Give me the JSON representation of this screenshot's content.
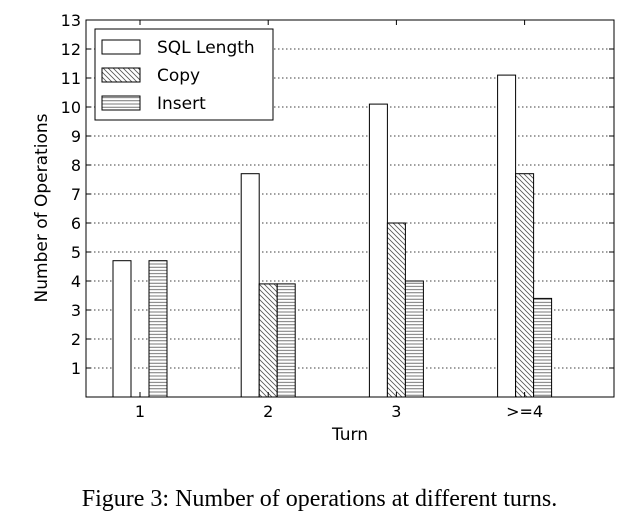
{
  "chart_data": {
    "type": "bar",
    "categories": [
      "1",
      "2",
      "3",
      ">=4"
    ],
    "series": [
      {
        "name": "SQL Length",
        "values": [
          4.7,
          7.7,
          10.1,
          11.1
        ],
        "pattern": "none"
      },
      {
        "name": "Copy",
        "values": [
          0,
          3.9,
          6.0,
          7.7
        ],
        "pattern": "diagonal"
      },
      {
        "name": "Insert",
        "values": [
          4.7,
          3.9,
          4.0,
          3.4
        ],
        "pattern": "horizontal"
      }
    ],
    "xlabel": "Turn",
    "ylabel": "Number of Operations",
    "ylim": [
      0,
      13
    ],
    "yticks": [
      1,
      2,
      3,
      4,
      5,
      6,
      7,
      8,
      9,
      10,
      11,
      12,
      13
    ],
    "grid": "horizontal dotted",
    "legend_position": "top-left",
    "bar_stroke": "#000000",
    "bar_fill": "#ffffff"
  },
  "caption": "Figure 3: Number of operations at different turns."
}
